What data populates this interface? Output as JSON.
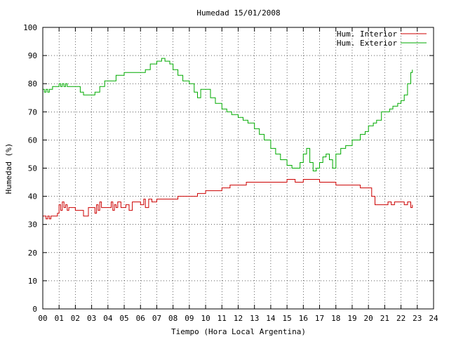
{
  "chart_data": {
    "type": "line",
    "title": "Humedad 15/01/2008",
    "xlabel": "Tiempo (Hora Local Argentina)",
    "ylabel": "Humedad (%)",
    "xlim": [
      0,
      24
    ],
    "ylim": [
      0,
      100
    ],
    "grid": true,
    "legend_position": "top-right",
    "x_ticks": [
      "00",
      "01",
      "02",
      "03",
      "04",
      "05",
      "06",
      "07",
      "08",
      "09",
      "10",
      "11",
      "12",
      "13",
      "14",
      "15",
      "16",
      "17",
      "18",
      "19",
      "20",
      "21",
      "22",
      "23",
      "24"
    ],
    "y_ticks": [
      "0",
      "10",
      "20",
      "30",
      "40",
      "50",
      "60",
      "70",
      "80",
      "90",
      "100"
    ],
    "series": [
      {
        "name": "Hum. Interior",
        "color": "#cc0000",
        "x": [
          0,
          0.2,
          0.3,
          0.4,
          0.5,
          0.8,
          0.9,
          1.0,
          1.1,
          1.2,
          1.3,
          1.4,
          1.5,
          1.6,
          2.0,
          2.3,
          2.5,
          2.6,
          2.8,
          3.0,
          3.2,
          3.3,
          3.4,
          3.5,
          3.6,
          4.0,
          4.2,
          4.3,
          4.4,
          4.5,
          4.6,
          4.8,
          5.0,
          5.1,
          5.3,
          5.5,
          5.8,
          6.0,
          6.2,
          6.3,
          6.5,
          6.7,
          6.9,
          7.0,
          7.3,
          8.0,
          8.3,
          9.0,
          9.5,
          10.0,
          10.5,
          11.0,
          11.5,
          12.0,
          12.5,
          13.0,
          13.5,
          14.0,
          14.5,
          15.0,
          15.5,
          16.0,
          16.5,
          17.0,
          18.0,
          19.0,
          19.5,
          20.0,
          20.2,
          20.4,
          20.6,
          21.0,
          21.2,
          21.4,
          21.6,
          22.0,
          22.2,
          22.4,
          22.6,
          22.7
        ],
        "y": [
          33,
          32,
          33,
          32,
          33,
          33,
          34,
          37,
          35,
          38,
          36,
          37,
          35,
          36,
          35,
          35,
          33,
          33,
          36,
          36,
          34,
          37,
          35,
          38,
          36,
          36,
          38,
          35,
          37,
          36,
          38,
          36,
          36,
          37,
          35,
          38,
          38,
          37,
          39,
          36,
          39,
          38,
          38,
          39,
          39,
          39,
          40,
          40,
          41,
          42,
          42,
          43,
          44,
          44,
          45,
          45,
          45,
          45,
          45,
          46,
          45,
          46,
          46,
          45,
          44,
          44,
          43,
          43,
          40,
          37,
          37,
          37,
          38,
          37,
          38,
          38,
          37,
          38,
          36,
          37
        ]
      },
      {
        "name": "Hum. Exterior",
        "color": "#00aa00",
        "x": [
          0,
          0.1,
          0.2,
          0.3,
          0.4,
          0.6,
          0.8,
          1.0,
          1.1,
          1.2,
          1.3,
          1.4,
          1.5,
          1.6,
          2.0,
          2.3,
          2.5,
          3.0,
          3.2,
          3.5,
          3.8,
          4.0,
          4.5,
          5.0,
          5.5,
          6.0,
          6.3,
          6.6,
          7.0,
          7.3,
          7.5,
          7.8,
          8.0,
          8.3,
          8.6,
          9.0,
          9.3,
          9.5,
          9.7,
          10.0,
          10.3,
          10.6,
          11.0,
          11.3,
          11.6,
          12.0,
          12.3,
          12.6,
          13.0,
          13.3,
          13.6,
          14.0,
          14.3,
          14.6,
          15.0,
          15.3,
          15.6,
          15.8,
          16.0,
          16.2,
          16.4,
          16.6,
          16.8,
          17.0,
          17.2,
          17.4,
          17.6,
          17.8,
          18.0,
          18.3,
          18.6,
          19.0,
          19.5,
          19.8,
          20.0,
          20.3,
          20.5,
          20.8,
          21.0,
          21.3,
          21.5,
          21.8,
          22.0,
          22.2,
          22.4,
          22.6,
          22.7
        ],
        "y": [
          78,
          77,
          78,
          77,
          78,
          79,
          79,
          80,
          79,
          80,
          79,
          80,
          79,
          79,
          79,
          77,
          76,
          76,
          77,
          79,
          81,
          81,
          83,
          84,
          84,
          84,
          85,
          87,
          88,
          89,
          88,
          87,
          85,
          83,
          81,
          80,
          77,
          75,
          78,
          78,
          75,
          73,
          71,
          70,
          69,
          68,
          67,
          66,
          64,
          62,
          60,
          57,
          55,
          53,
          51,
          50,
          50,
          52,
          55,
          57,
          52,
          49,
          50,
          52,
          54,
          55,
          53,
          50,
          55,
          57,
          58,
          60,
          62,
          63,
          65,
          66,
          67,
          70,
          70,
          71,
          72,
          73,
          74,
          76,
          80,
          84,
          85
        ]
      }
    ]
  }
}
